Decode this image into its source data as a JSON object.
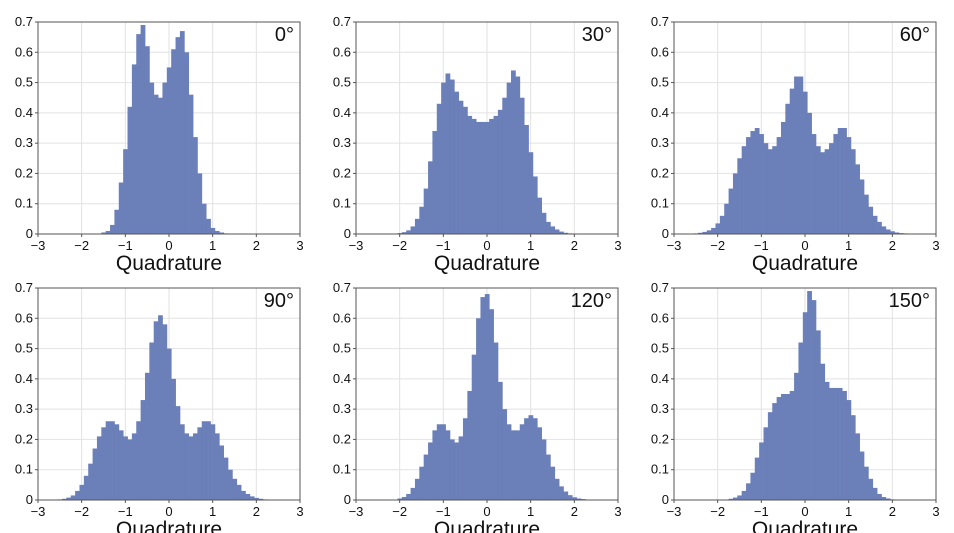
{
  "chart_data": [
    {
      "type": "bar",
      "title": "0°",
      "xlabel": "Quadrature",
      "xlim": [
        -3,
        3
      ],
      "ylim": [
        0,
        0.7
      ],
      "xticks": [
        -3,
        -2,
        -1,
        0,
        1,
        2,
        3
      ],
      "yticks": [
        0,
        0.1,
        0.2,
        0.3,
        0.4,
        0.5,
        0.6,
        0.7
      ],
      "grid": true,
      "bin_centers": [
        -1.5,
        -1.4,
        -1.3,
        -1.2,
        -1.1,
        -1.0,
        -0.9,
        -0.8,
        -0.7,
        -0.6,
        -0.5,
        -0.4,
        -0.3,
        -0.2,
        -0.1,
        0.0,
        0.1,
        0.2,
        0.3,
        0.4,
        0.5,
        0.6,
        0.7,
        0.8,
        0.9,
        1.0,
        1.1,
        1.2,
        1.3,
        1.4
      ],
      "values": [
        0.005,
        0.01,
        0.03,
        0.08,
        0.17,
        0.28,
        0.42,
        0.56,
        0.66,
        0.69,
        0.62,
        0.5,
        0.46,
        0.45,
        0.5,
        0.55,
        0.61,
        0.65,
        0.67,
        0.6,
        0.46,
        0.32,
        0.2,
        0.1,
        0.05,
        0.02,
        0.01,
        0.005,
        0.002,
        0.001
      ]
    },
    {
      "type": "bar",
      "title": "30°",
      "xlabel": "Quadrature",
      "xlim": [
        -3,
        3
      ],
      "ylim": [
        0,
        0.7
      ],
      "xticks": [
        -3,
        -2,
        -1,
        0,
        1,
        2,
        3
      ],
      "yticks": [
        0,
        0.1,
        0.2,
        0.3,
        0.4,
        0.5,
        0.6,
        0.7
      ],
      "grid": true,
      "bin_centers": [
        -2.0,
        -1.9,
        -1.8,
        -1.7,
        -1.6,
        -1.5,
        -1.4,
        -1.3,
        -1.2,
        -1.1,
        -1.0,
        -0.9,
        -0.8,
        -0.7,
        -0.6,
        -0.5,
        -0.4,
        -0.3,
        -0.2,
        -0.1,
        0.0,
        0.1,
        0.2,
        0.3,
        0.4,
        0.5,
        0.6,
        0.7,
        0.8,
        0.9,
        1.0,
        1.1,
        1.2,
        1.3,
        1.4,
        1.5,
        1.6,
        1.7,
        1.8,
        1.9,
        2.0
      ],
      "values": [
        0.003,
        0.006,
        0.012,
        0.025,
        0.05,
        0.09,
        0.15,
        0.24,
        0.34,
        0.43,
        0.5,
        0.53,
        0.51,
        0.47,
        0.44,
        0.42,
        0.39,
        0.38,
        0.37,
        0.37,
        0.37,
        0.38,
        0.39,
        0.41,
        0.45,
        0.5,
        0.54,
        0.52,
        0.45,
        0.36,
        0.27,
        0.19,
        0.12,
        0.07,
        0.04,
        0.025,
        0.015,
        0.008,
        0.004,
        0.002,
        0.001
      ]
    },
    {
      "type": "bar",
      "title": "60°",
      "xlabel": "Quadrature",
      "xlim": [
        -3,
        3
      ],
      "ylim": [
        0,
        0.7
      ],
      "xticks": [
        -3,
        -2,
        -1,
        0,
        1,
        2,
        3
      ],
      "yticks": [
        0,
        0.1,
        0.2,
        0.3,
        0.4,
        0.5,
        0.6,
        0.7
      ],
      "grid": true,
      "bin_centers": [
        -2.5,
        -2.4,
        -2.3,
        -2.2,
        -2.1,
        -2.0,
        -1.9,
        -1.8,
        -1.7,
        -1.6,
        -1.5,
        -1.4,
        -1.3,
        -1.2,
        -1.1,
        -1.0,
        -0.9,
        -0.8,
        -0.7,
        -0.6,
        -0.5,
        -0.4,
        -0.3,
        -0.2,
        -0.1,
        0.0,
        0.1,
        0.2,
        0.3,
        0.4,
        0.5,
        0.6,
        0.7,
        0.8,
        0.9,
        1.0,
        1.1,
        1.2,
        1.3,
        1.4,
        1.5,
        1.6,
        1.7,
        1.8,
        1.9,
        2.0,
        2.1,
        2.2,
        2.3,
        2.4,
        2.5
      ],
      "values": [
        0.002,
        0.004,
        0.007,
        0.012,
        0.02,
        0.035,
        0.06,
        0.1,
        0.15,
        0.2,
        0.25,
        0.29,
        0.32,
        0.34,
        0.35,
        0.33,
        0.3,
        0.28,
        0.29,
        0.32,
        0.37,
        0.43,
        0.48,
        0.52,
        0.52,
        0.47,
        0.4,
        0.33,
        0.29,
        0.27,
        0.28,
        0.3,
        0.33,
        0.35,
        0.35,
        0.32,
        0.28,
        0.23,
        0.18,
        0.13,
        0.09,
        0.06,
        0.04,
        0.025,
        0.015,
        0.009,
        0.005,
        0.003,
        0.002,
        0.001,
        0.0
      ]
    },
    {
      "type": "bar",
      "title": "90°",
      "xlabel": "Quadrature",
      "xlim": [
        -3,
        3
      ],
      "ylim": [
        0,
        0.7
      ],
      "xticks": [
        -3,
        -2,
        -1,
        0,
        1,
        2,
        3
      ],
      "yticks": [
        0,
        0.1,
        0.2,
        0.3,
        0.4,
        0.5,
        0.6,
        0.7
      ],
      "grid": true,
      "bin_centers": [
        -2.5,
        -2.4,
        -2.3,
        -2.2,
        -2.1,
        -2.0,
        -1.9,
        -1.8,
        -1.7,
        -1.6,
        -1.5,
        -1.4,
        -1.3,
        -1.2,
        -1.1,
        -1.0,
        -0.9,
        -0.8,
        -0.7,
        -0.6,
        -0.5,
        -0.4,
        -0.3,
        -0.2,
        -0.1,
        0.0,
        0.1,
        0.2,
        0.3,
        0.4,
        0.5,
        0.6,
        0.7,
        0.8,
        0.9,
        1.0,
        1.1,
        1.2,
        1.3,
        1.4,
        1.5,
        1.6,
        1.7,
        1.8,
        1.9,
        2.0,
        2.1,
        2.2,
        2.3,
        2.4,
        2.5
      ],
      "values": [
        0.002,
        0.004,
        0.008,
        0.015,
        0.03,
        0.05,
        0.08,
        0.12,
        0.17,
        0.21,
        0.24,
        0.26,
        0.26,
        0.25,
        0.23,
        0.21,
        0.2,
        0.22,
        0.26,
        0.33,
        0.42,
        0.52,
        0.59,
        0.61,
        0.58,
        0.5,
        0.4,
        0.31,
        0.25,
        0.22,
        0.21,
        0.22,
        0.24,
        0.26,
        0.26,
        0.25,
        0.22,
        0.18,
        0.14,
        0.1,
        0.07,
        0.05,
        0.03,
        0.02,
        0.012,
        0.007,
        0.004,
        0.002,
        0.001,
        0.0,
        0.0
      ]
    },
    {
      "type": "bar",
      "title": "120°",
      "xlabel": "Quadrature",
      "xlim": [
        -3,
        3
      ],
      "ylim": [
        0,
        0.7
      ],
      "xticks": [
        -3,
        -2,
        -1,
        0,
        1,
        2,
        3
      ],
      "yticks": [
        0,
        0.1,
        0.2,
        0.3,
        0.4,
        0.5,
        0.6,
        0.7
      ],
      "grid": true,
      "bin_centers": [
        -2.0,
        -1.9,
        -1.8,
        -1.7,
        -1.6,
        -1.5,
        -1.4,
        -1.3,
        -1.2,
        -1.1,
        -1.0,
        -0.9,
        -0.8,
        -0.7,
        -0.6,
        -0.5,
        -0.4,
        -0.3,
        -0.2,
        -0.1,
        0.0,
        0.1,
        0.2,
        0.3,
        0.4,
        0.5,
        0.6,
        0.7,
        0.8,
        0.9,
        1.0,
        1.1,
        1.2,
        1.3,
        1.4,
        1.5,
        1.6,
        1.7,
        1.8,
        1.9,
        2.0,
        2.1,
        2.2,
        2.3,
        2.4
      ],
      "values": [
        0.005,
        0.01,
        0.02,
        0.04,
        0.07,
        0.11,
        0.15,
        0.19,
        0.23,
        0.25,
        0.25,
        0.23,
        0.2,
        0.19,
        0.21,
        0.27,
        0.36,
        0.48,
        0.6,
        0.67,
        0.68,
        0.63,
        0.52,
        0.39,
        0.3,
        0.25,
        0.23,
        0.23,
        0.25,
        0.27,
        0.28,
        0.27,
        0.24,
        0.2,
        0.15,
        0.11,
        0.07,
        0.045,
        0.028,
        0.016,
        0.009,
        0.005,
        0.003,
        0.001,
        0.0
      ]
    },
    {
      "type": "bar",
      "title": "150°",
      "xlabel": "Quadrature",
      "xlim": [
        -3,
        3
      ],
      "ylim": [
        0,
        0.7
      ],
      "xticks": [
        -3,
        -2,
        -1,
        0,
        1,
        2,
        3
      ],
      "yticks": [
        0,
        0.1,
        0.2,
        0.3,
        0.4,
        0.5,
        0.6,
        0.7
      ],
      "grid": true,
      "bin_centers": [
        -1.7,
        -1.6,
        -1.5,
        -1.4,
        -1.3,
        -1.2,
        -1.1,
        -1.0,
        -0.9,
        -0.8,
        -0.7,
        -0.6,
        -0.5,
        -0.4,
        -0.3,
        -0.2,
        -0.1,
        0.0,
        0.1,
        0.2,
        0.3,
        0.4,
        0.5,
        0.6,
        0.7,
        0.8,
        0.9,
        1.0,
        1.1,
        1.2,
        1.3,
        1.4,
        1.5,
        1.6,
        1.7,
        1.8,
        1.9,
        2.0
      ],
      "values": [
        0.004,
        0.008,
        0.015,
        0.03,
        0.055,
        0.09,
        0.14,
        0.19,
        0.24,
        0.29,
        0.32,
        0.34,
        0.35,
        0.35,
        0.36,
        0.42,
        0.52,
        0.62,
        0.69,
        0.66,
        0.56,
        0.45,
        0.39,
        0.37,
        0.37,
        0.37,
        0.36,
        0.33,
        0.28,
        0.22,
        0.16,
        0.11,
        0.07,
        0.04,
        0.02,
        0.01,
        0.005,
        0.002
      ]
    }
  ]
}
